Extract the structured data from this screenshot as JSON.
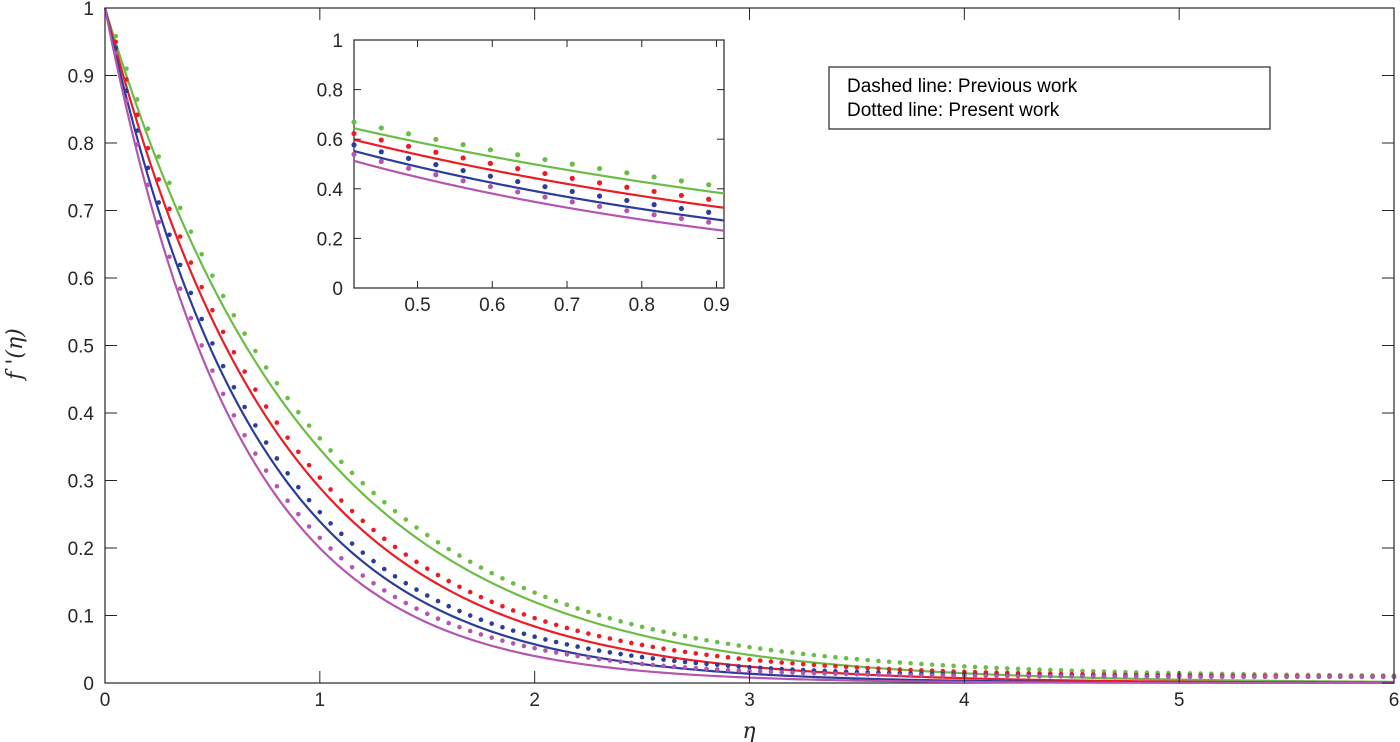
{
  "chart_data": [
    {
      "type": "line",
      "title": "",
      "xlabel": "η",
      "ylabel": "f '(η)",
      "xlim": [
        0,
        6
      ],
      "ylim": [
        0,
        1
      ],
      "xticks": [
        "0",
        "1",
        "2",
        "3",
        "4",
        "5",
        "6"
      ],
      "yticks": [
        "0",
        "0.1",
        "0.2",
        "0.3",
        "0.4",
        "0.5",
        "0.6",
        "0.7",
        "0.8",
        "0.9",
        "1"
      ],
      "grid": false,
      "legend": {
        "placement": "top-right",
        "entries": [
          "Dashed line: Previous work",
          "Dotted line: Present work"
        ]
      },
      "curves": [
        {
          "color": "#6cbd45",
          "solid_decay": 1.06,
          "dotted_decay": 1.04
        },
        {
          "color": "#ec1c24",
          "solid_decay": 1.24,
          "dotted_decay": 1.22
        },
        {
          "color": "#2b3d9b",
          "solid_decay": 1.43,
          "dotted_decay": 1.41
        },
        {
          "color": "#b455b0",
          "solid_decay": 1.61,
          "dotted_decay": 1.58
        }
      ],
      "series_note_values": {
        "x": [
          0,
          0.5,
          1,
          1.5,
          2,
          3,
          4,
          5,
          6
        ],
        "green_solid": [
          1.0,
          0.59,
          0.35,
          0.2,
          0.12,
          0.042,
          0.014,
          0.005,
          0.0
        ],
        "red_solid": [
          1.0,
          0.54,
          0.29,
          0.16,
          0.084,
          0.024,
          0.007,
          0.002,
          0.0
        ],
        "blue_solid": [
          1.0,
          0.49,
          0.24,
          0.12,
          0.057,
          0.014,
          0.003,
          0.001,
          0.0
        ],
        "magenta_solid": [
          1.0,
          0.45,
          0.2,
          0.089,
          0.04,
          0.008,
          0.002,
          0.0,
          0.0
        ]
      }
    },
    {
      "type": "line",
      "title": "",
      "xlabel": "",
      "ylabel": "",
      "xlim": [
        0.415,
        0.91
      ],
      "ylim": [
        0,
        1
      ],
      "xticks": [
        "0.5",
        "0.6",
        "0.7",
        "0.8",
        "0.9"
      ],
      "yticks": [
        "0",
        "0.2",
        "0.4",
        "0.6",
        "0.8",
        "1"
      ],
      "grid": false,
      "placement": "inset, upper middle"
    }
  ]
}
